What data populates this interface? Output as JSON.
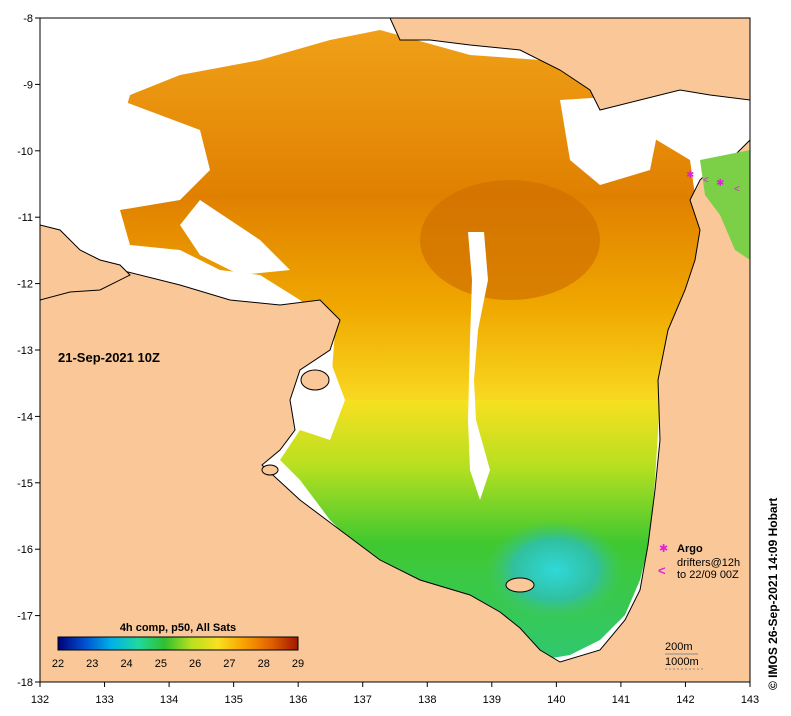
{
  "map": {
    "date_label": "21-Sep-2021 10Z",
    "colors": {
      "land": "#fac898",
      "no_data": "#ffffff",
      "coast": "#000000",
      "argo": "#e020e0"
    },
    "x_ticks": [
      "132",
      "133",
      "134",
      "135",
      "136",
      "137",
      "138",
      "139",
      "140",
      "141",
      "142",
      "143"
    ],
    "y_ticks": [
      "-8",
      "-9",
      "-10",
      "-11",
      "-12",
      "-13",
      "-14",
      "-15",
      "-16",
      "-17",
      "-18"
    ],
    "colorbar": {
      "title": "4h comp, p50, All Sats",
      "labels": [
        "22",
        "23",
        "24",
        "25",
        "26",
        "27",
        "28",
        "29"
      ],
      "colors": [
        "#00007a",
        "#0050d0",
        "#00b0e8",
        "#20d8a0",
        "#30c030",
        "#b8e020",
        "#f8e020",
        "#f8a000",
        "#e06000",
        "#a01800"
      ]
    },
    "legend": {
      "argo_label": "Argo",
      "drifters_label": "drifters@12h",
      "drifters_date": "to 22/09 00Z",
      "argo_symbol": "✱",
      "drifter_symbol": "<"
    },
    "depth_labels": [
      "200m",
      "1000m"
    ],
    "credit": "© IMOS 26-Sep-2021 14:09 Hobart"
  }
}
